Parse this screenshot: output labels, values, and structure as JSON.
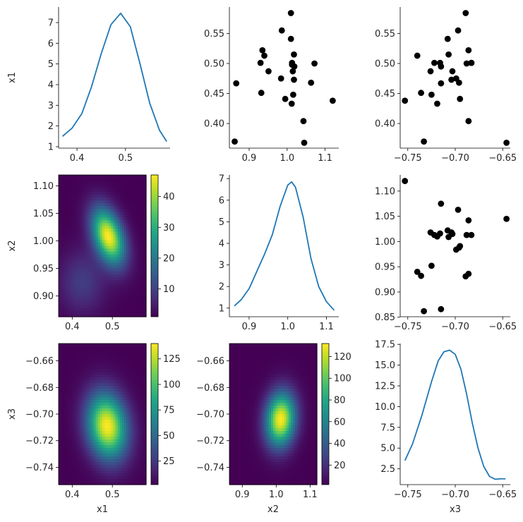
{
  "colors": {
    "kde_line": "#1f77b4",
    "scatter_point": "#000000",
    "colormap": "viridis"
  },
  "chart_data": [
    {
      "panel": "x1-x1",
      "type": "line",
      "x": [
        0.37,
        0.39,
        0.41,
        0.43,
        0.45,
        0.47,
        0.49,
        0.51,
        0.53,
        0.55,
        0.57,
        0.585
      ],
      "y": [
        1.5,
        1.9,
        2.6,
        3.9,
        5.5,
        6.9,
        7.45,
        6.8,
        5.0,
        3.1,
        1.8,
        1.25
      ],
      "xlim": [
        0.362,
        0.592
      ],
      "ylim": [
        0.93,
        7.75
      ],
      "xticks": [
        0.4,
        0.5
      ],
      "xtick_labels": [
        "0.4",
        "0.5"
      ],
      "yticks": [
        1,
        2,
        3,
        4,
        5,
        6,
        7
      ],
      "ytick_labels": [
        "1",
        "2",
        "3",
        "4",
        "5",
        "6",
        "7"
      ],
      "xlabel": "",
      "ylabel": "x1"
    },
    {
      "panel": "x2-x1",
      "type": "scatter",
      "x": [
        0.862,
        0.866,
        0.93,
        0.932,
        0.935,
        0.94,
        0.951,
        0.984,
        0.986,
        0.995,
        1.01,
        1.01,
        1.012,
        1.013,
        1.013,
        1.015,
        1.016,
        1.018,
        1.018,
        1.019,
        1.043,
        1.045,
        1.063,
        1.072,
        1.12
      ],
      "y": [
        0.37,
        0.467,
        0.501,
        0.451,
        0.522,
        0.513,
        0.487,
        0.475,
        0.555,
        0.441,
        0.541,
        0.584,
        0.433,
        0.501,
        0.498,
        0.487,
        0.448,
        0.473,
        0.515,
        0.495,
        0.404,
        0.368,
        0.468,
        0.5,
        0.438
      ],
      "xlim": [
        0.848,
        1.136
      ],
      "ylim": [
        0.359,
        0.594
      ],
      "xticks": [
        0.9,
        1.0,
        1.1
      ],
      "xtick_labels": [
        "0.9",
        "1.0",
        "1.1"
      ],
      "yticks": [
        0.4,
        0.45,
        0.5,
        0.55
      ],
      "ytick_labels": [
        "0.40",
        "0.45",
        "0.50",
        "0.55"
      ]
    },
    {
      "panel": "x3-x1",
      "type": "scatter",
      "x": [
        -0.753,
        -0.74,
        -0.736,
        -0.733,
        -0.726,
        -0.725,
        -0.722,
        -0.719,
        -0.716,
        -0.715,
        -0.715,
        -0.708,
        -0.707,
        -0.704,
        -0.703,
        -0.699,
        -0.697,
        -0.696,
        -0.695,
        -0.689,
        -0.688,
        -0.686,
        -0.686,
        -0.683,
        -0.683,
        -0.646
      ],
      "y": [
        0.438,
        0.513,
        0.451,
        0.37,
        0.487,
        0.448,
        0.501,
        0.433,
        0.501,
        0.467,
        0.495,
        0.541,
        0.515,
        0.473,
        0.487,
        0.475,
        0.555,
        0.468,
        0.441,
        0.584,
        0.5,
        0.404,
        0.522,
        0.501,
        0.501,
        0.368
      ],
      "xlim": [
        -0.758,
        -0.642
      ],
      "ylim": [
        0.359,
        0.594
      ],
      "xticks": [
        -0.75,
        -0.7,
        -0.65
      ],
      "xtick_labels": [
        "−0.75",
        "−0.70",
        "−0.65"
      ],
      "yticks": [
        0.4,
        0.45,
        0.5,
        0.55
      ],
      "ytick_labels": [
        "0.40",
        "0.45",
        "0.50",
        "0.55"
      ]
    },
    {
      "panel": "x1-x2",
      "type": "heatmap",
      "x_range": [
        0.366,
        0.584
      ],
      "y_range": [
        0.862,
        1.12
      ],
      "peak": [
        0.49,
        1.008
      ],
      "sigma": [
        0.028,
        0.035
      ],
      "rho": -0.4,
      "tail": {
        "center": [
          0.425,
          0.925
        ],
        "amp": 0.18,
        "sigma": [
          0.04,
          0.04
        ]
      },
      "vmin": 1,
      "vmax": 47,
      "xticks": [
        0.4,
        0.5
      ],
      "xtick_labels": [
        "0.4",
        "0.5"
      ],
      "yticks": [
        0.9,
        0.95,
        1.0,
        1.05,
        1.1
      ],
      "ytick_labels": [
        "0.90",
        "0.95",
        "1.00",
        "1.05",
        "1.10"
      ],
      "cbar_ticks": [
        10,
        20,
        30,
        40
      ],
      "cbar_tick_labels": [
        "10",
        "20",
        "30",
        "40"
      ],
      "xlabel": "",
      "ylabel": "x2"
    },
    {
      "panel": "x2-x2",
      "type": "line",
      "x": [
        0.862,
        0.88,
        0.9,
        0.92,
        0.94,
        0.96,
        0.98,
        1.0,
        1.01,
        1.02,
        1.04,
        1.06,
        1.08,
        1.1,
        1.12
      ],
      "y": [
        1.1,
        1.4,
        1.9,
        2.7,
        3.5,
        4.4,
        5.7,
        6.7,
        6.85,
        6.6,
        5.2,
        3.3,
        2.0,
        1.3,
        0.9
      ],
      "xlim": [
        0.849,
        1.132
      ],
      "ylim": [
        0.6,
        7.17
      ],
      "xticks": [
        0.9,
        1.0,
        1.1
      ],
      "xtick_labels": [
        "0.9",
        "1.0",
        "1.1"
      ],
      "yticks": [
        1,
        2,
        3,
        4,
        5,
        6,
        7
      ],
      "ytick_labels": [
        "1",
        "2",
        "3",
        "4",
        "5",
        "6",
        "7"
      ]
    },
    {
      "panel": "x3-x2",
      "type": "scatter",
      "x": [
        -0.753,
        -0.74,
        -0.736,
        -0.733,
        -0.726,
        -0.725,
        -0.722,
        -0.719,
        -0.716,
        -0.715,
        -0.715,
        -0.708,
        -0.707,
        -0.704,
        -0.703,
        -0.699,
        -0.697,
        -0.696,
        -0.695,
        -0.689,
        -0.688,
        -0.686,
        -0.686,
        -0.683,
        -0.646
      ],
      "y": [
        1.12,
        0.94,
        0.932,
        0.862,
        1.018,
        0.952,
        1.013,
        1.01,
        1.016,
        1.075,
        0.866,
        1.022,
        1.009,
        1.018,
        1.015,
        0.984,
        1.063,
        0.988,
        0.991,
        0.931,
        1.013,
        1.042,
        0.936,
        1.013,
        1.045
      ],
      "xlim": [
        -0.758,
        -0.642
      ],
      "ylim": [
        0.851,
        1.132
      ],
      "xticks": [
        -0.75,
        -0.7,
        -0.65
      ],
      "xtick_labels": [
        "−0.75",
        "−0.70",
        "−0.65"
      ],
      "yticks": [
        0.85,
        0.9,
        0.95,
        1.0,
        1.05,
        1.1
      ],
      "ytick_labels": [
        "0.85",
        "0.90",
        "0.95",
        "1.00",
        "1.05",
        "1.10"
      ]
    },
    {
      "panel": "x1-x3",
      "type": "heatmap",
      "x_range": [
        0.366,
        0.584
      ],
      "y_range": [
        -0.753,
        -0.647
      ],
      "peak": [
        0.487,
        -0.709
      ],
      "sigma": [
        0.034,
        0.017
      ],
      "rho": -0.15,
      "vmin": 2,
      "vmax": 140,
      "xticks": [
        0.4,
        0.5
      ],
      "xtick_labels": [
        "0.4",
        "0.5"
      ],
      "yticks": [
        -0.74,
        -0.72,
        -0.7,
        -0.68,
        -0.66
      ],
      "ytick_labels": [
        "−0.74",
        "−0.72",
        "−0.70",
        "−0.68",
        "−0.66"
      ],
      "cbar_ticks": [
        25,
        50,
        75,
        100,
        125
      ],
      "cbar_tick_labels": [
        "25",
        "50",
        "75",
        "100",
        "125"
      ],
      "xlabel": "x1",
      "ylabel": "x3"
    },
    {
      "panel": "x2-x3",
      "type": "heatmap",
      "x_range": [
        0.862,
        1.12
      ],
      "y_range": [
        -0.753,
        -0.647
      ],
      "peak": [
        1.013,
        -0.704
      ],
      "sigma": [
        0.03,
        0.014
      ],
      "rho": 0.1,
      "vmin": 2,
      "vmax": 132,
      "xticks": [
        0.9,
        1.0,
        1.1
      ],
      "xtick_labels": [
        "0.9",
        "1.0",
        "1.1"
      ],
      "yticks": [
        -0.74,
        -0.72,
        -0.7,
        -0.68,
        -0.66
      ],
      "ytick_labels": [
        "−0.74",
        "−0.72",
        "−0.70",
        "−0.68",
        "−0.66"
      ],
      "cbar_ticks": [
        20,
        40,
        60,
        80,
        100,
        120
      ],
      "cbar_tick_labels": [
        "20",
        "40",
        "60",
        "80",
        "100",
        "120"
      ],
      "xlabel": "x2",
      "ylabel": ""
    },
    {
      "panel": "x3-x3",
      "type": "line",
      "x": [
        -0.753,
        -0.745,
        -0.735,
        -0.725,
        -0.718,
        -0.712,
        -0.706,
        -0.7,
        -0.694,
        -0.688,
        -0.682,
        -0.676,
        -0.67,
        -0.664,
        -0.658,
        -0.652,
        -0.647
      ],
      "y": [
        3.5,
        5.5,
        9.0,
        13.0,
        15.5,
        16.6,
        16.8,
        16.3,
        14.5,
        11.5,
        8.0,
        5.0,
        2.8,
        1.6,
        1.25,
        1.3,
        1.3
      ],
      "xlim": [
        -0.758,
        -0.642
      ],
      "ylim": [
        0.6,
        17.6
      ],
      "xticks": [
        -0.75,
        -0.7,
        -0.65
      ],
      "xtick_labels": [
        "−0.75",
        "−0.70",
        "−0.65"
      ],
      "yticks": [
        2.5,
        5.0,
        7.5,
        10.0,
        12.5,
        15.0,
        17.5
      ],
      "ytick_labels": [
        "2.5",
        "5.0",
        "7.5",
        "10.0",
        "12.5",
        "15.0",
        "17.5"
      ],
      "xlabel": "x3",
      "ylabel": ""
    }
  ]
}
